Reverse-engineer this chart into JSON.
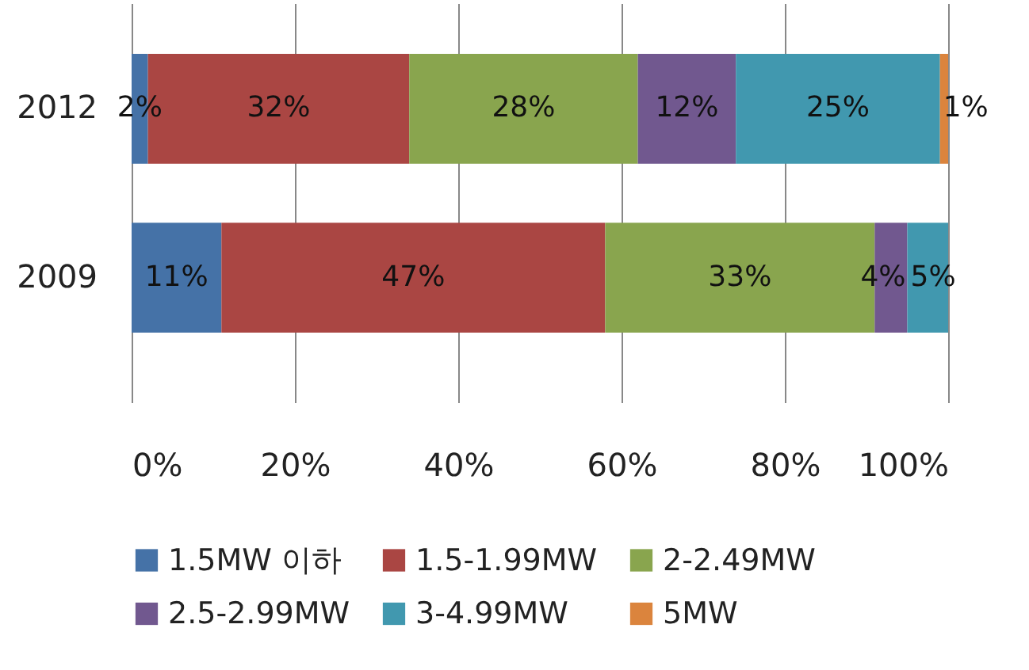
{
  "chart_data": {
    "type": "bar",
    "orientation": "horizontal",
    "stacked": true,
    "categories": [
      "2012",
      "2009"
    ],
    "series": [
      {
        "name": "1.5MW 이하",
        "color": "#4572a7",
        "values": [
          2,
          11
        ],
        "value_labels": [
          "2%",
          "11%"
        ]
      },
      {
        "name": "1.5-1.99MW",
        "color": "#aa4643",
        "values": [
          32,
          47
        ],
        "value_labels": [
          "32%",
          "47%"
        ]
      },
      {
        "name": "2-2.49MW",
        "color": "#89a54e",
        "values": [
          28,
          33
        ],
        "value_labels": [
          "28%",
          "33%"
        ]
      },
      {
        "name": "2.5-2.99MW",
        "color": "#71588f",
        "values": [
          12,
          4
        ],
        "value_labels": [
          "12%",
          "4%"
        ]
      },
      {
        "name": "3-4.99MW",
        "color": "#4198af",
        "values": [
          25,
          5
        ],
        "value_labels": [
          "25%",
          "5%"
        ]
      },
      {
        "name": "5MW",
        "color": "#db843d",
        "values": [
          1,
          0
        ],
        "value_labels": [
          "1%",
          null
        ]
      }
    ],
    "xlim": [
      0,
      100
    ],
    "xticks": [
      {
        "value": 0,
        "label": "0%"
      },
      {
        "value": 20,
        "label": "20%"
      },
      {
        "value": 40,
        "label": "40%"
      },
      {
        "value": 60,
        "label": "60%"
      },
      {
        "value": 80,
        "label": "80%"
      },
      {
        "value": 100,
        "label": "100%"
      }
    ],
    "grid": "x",
    "legend": "bottom"
  }
}
